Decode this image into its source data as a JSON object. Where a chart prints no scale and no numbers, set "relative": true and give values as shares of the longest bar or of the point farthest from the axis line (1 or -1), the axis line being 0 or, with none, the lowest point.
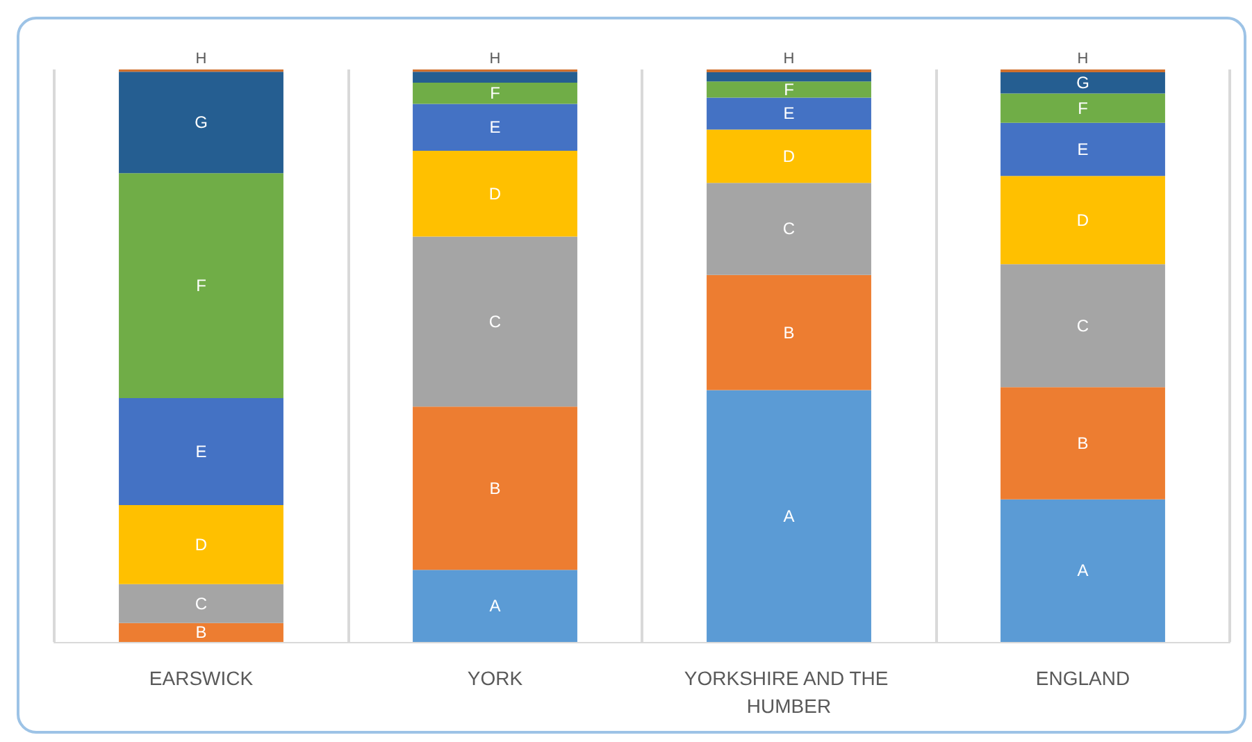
{
  "chart_data": {
    "type": "bar",
    "stacked": true,
    "relative": true,
    "legend": false,
    "grid": "x",
    "categories": [
      "EARSWICK",
      "YORK",
      "YORKSHIRE AND THE HUMBER",
      "ENGLAND"
    ],
    "series": [
      {
        "name": "A",
        "color": "#5b9bd5",
        "values": [
          0,
          0.126,
          0.44,
          0.249
        ]
      },
      {
        "name": "B",
        "color": "#ed7d31",
        "values": [
          0.033,
          0.285,
          0.201,
          0.196
        ]
      },
      {
        "name": "C",
        "color": "#a5a5a5",
        "values": [
          0.068,
          0.297,
          0.161,
          0.215
        ]
      },
      {
        "name": "D",
        "color": "#ffc000",
        "values": [
          0.138,
          0.15,
          0.093,
          0.154
        ]
      },
      {
        "name": "E",
        "color": "#4472c4",
        "values": [
          0.187,
          0.082,
          0.056,
          0.093
        ]
      },
      {
        "name": "F",
        "color": "#70ad47",
        "values": [
          0.393,
          0.037,
          0.028,
          0.051
        ]
      },
      {
        "name": "G",
        "color": "#255e91",
        "values": [
          0.177,
          0.019,
          0.016,
          0.037
        ]
      },
      {
        "name": "H",
        "color": "#d0702e",
        "values": [
          0.004,
          0.004,
          0.005,
          0.005
        ]
      }
    ]
  }
}
